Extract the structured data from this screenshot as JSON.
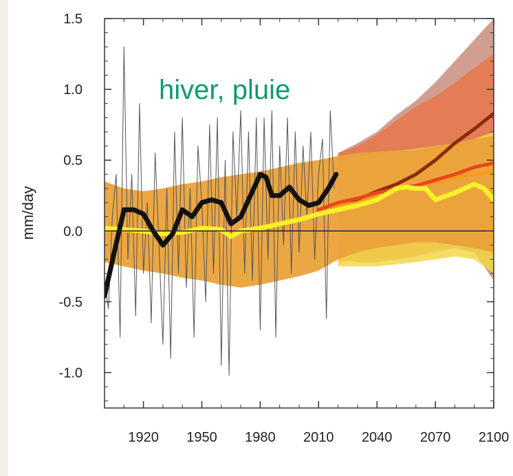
{
  "chart_data": {
    "type": "line",
    "title": "hiver, pluie",
    "ylabel": "mm/day",
    "xlabel": "",
    "xlim": [
      1900,
      2100
    ],
    "ylim": [
      -1.25,
      1.5
    ],
    "x_tick_labels": [
      "1920",
      "1950",
      "1980",
      "2010",
      "2040",
      "2070",
      "2100"
    ],
    "x_ticks": [
      1920,
      1950,
      1980,
      2010,
      2040,
      2070,
      2100
    ],
    "y_tick_labels": [
      "1.5",
      "1.0",
      "0.5",
      "0.0",
      "-0.5",
      "-1.0"
    ],
    "y_ticks": [
      1.5,
      1.0,
      0.5,
      0.0,
      -0.5,
      -1.0
    ],
    "zero_line": 0,
    "grid": false,
    "colors": {
      "title": "#0f9a6e",
      "envelope_orange": "#e9a23a",
      "envelope_red": "#e8774a",
      "envelope_brown": "#c98e7e",
      "envelope_yellow": "#f2d64a",
      "obs_annual": "#555555",
      "obs_smooth": "#111111",
      "proj_brown": "#8b2a0c",
      "proj_red": "#e8471c",
      "proj_orange": "#f59a1e",
      "proj_yellow": "#f7f02a"
    },
    "bands": [
      {
        "color": "envelope_brown",
        "x": [
          2020,
          2030,
          2040,
          2050,
          2060,
          2070,
          2080,
          2090,
          2100
        ],
        "upper": [
          0.55,
          0.62,
          0.7,
          0.82,
          0.92,
          1.05,
          1.2,
          1.35,
          1.5
        ],
        "lower": [
          -0.2,
          -0.22,
          -0.22,
          -0.2,
          -0.18,
          -0.15,
          -0.12,
          -0.15,
          -0.35
        ]
      },
      {
        "color": "envelope_red",
        "x": [
          2020,
          2030,
          2040,
          2050,
          2060,
          2070,
          2080,
          2090,
          2100
        ],
        "upper": [
          0.55,
          0.6,
          0.68,
          0.78,
          0.88,
          0.95,
          1.05,
          1.15,
          1.25
        ],
        "lower": [
          -0.22,
          -0.2,
          -0.2,
          -0.2,
          -0.18,
          -0.12,
          -0.12,
          -0.15,
          -0.18
        ]
      },
      {
        "color": "envelope_yellow",
        "x": [
          2020,
          2040,
          2060,
          2080,
          2090,
          2100
        ],
        "upper": [
          0.5,
          0.55,
          0.58,
          0.62,
          0.65,
          0.7
        ],
        "lower": [
          -0.25,
          -0.25,
          -0.22,
          -0.18,
          -0.2,
          -0.3
        ]
      },
      {
        "color": "envelope_orange",
        "x": [
          1900,
          1910,
          1920,
          1930,
          1940,
          1950,
          1960,
          1970,
          1980,
          1990,
          2000,
          2010,
          2020,
          2030,
          2040,
          2050,
          2060,
          2070,
          2080,
          2090,
          2100
        ],
        "upper": [
          0.35,
          0.3,
          0.28,
          0.3,
          0.33,
          0.35,
          0.38,
          0.4,
          0.42,
          0.45,
          0.48,
          0.5,
          0.53,
          0.55,
          0.56,
          0.57,
          0.57,
          0.6,
          0.62,
          0.65,
          0.67
        ],
        "lower": [
          -0.22,
          -0.25,
          -0.28,
          -0.3,
          -0.33,
          -0.35,
          -0.38,
          -0.4,
          -0.38,
          -0.35,
          -0.32,
          -0.28,
          -0.2,
          -0.15,
          -0.12,
          -0.1,
          -0.08,
          -0.08,
          -0.1,
          -0.12,
          -0.15
        ]
      }
    ],
    "series": [
      {
        "color": "obs_annual",
        "width": 1,
        "x": [
          1900,
          1902,
          1904,
          1906,
          1908,
          1910,
          1912,
          1914,
          1916,
          1918,
          1920,
          1922,
          1924,
          1926,
          1928,
          1930,
          1932,
          1934,
          1936,
          1938,
          1940,
          1942,
          1944,
          1946,
          1948,
          1950,
          1952,
          1954,
          1956,
          1958,
          1960,
          1962,
          1964,
          1966,
          1968,
          1970,
          1972,
          1974,
          1976,
          1978,
          1980,
          1982,
          1984,
          1986,
          1988,
          1990,
          1992,
          1994,
          1996,
          1998,
          2000,
          2002,
          2004,
          2006,
          2008,
          2010,
          2012,
          2014,
          2016,
          2018
        ],
        "y": [
          -0.35,
          -0.55,
          0.1,
          0.4,
          -0.75,
          1.3,
          -0.2,
          0.4,
          -0.6,
          0.9,
          -0.3,
          0.2,
          -0.65,
          0.55,
          -0.1,
          -0.8,
          0.3,
          -0.9,
          0.7,
          -0.3,
          0.8,
          -0.4,
          0.3,
          -0.75,
          0.6,
          0.2,
          -0.5,
          0.75,
          -0.3,
          0.8,
          -0.95,
          0.5,
          -1.02,
          0.7,
          0.1,
          0.85,
          -0.3,
          0.7,
          -0.35,
          0.8,
          -0.7,
          0.8,
          -0.2,
          0.85,
          -0.75,
          0.6,
          -0.1,
          0.8,
          -0.3,
          0.7,
          -0.15,
          0.6,
          0.1,
          0.7,
          -0.2,
          0.4,
          0.65,
          -0.62,
          0.85,
          0.3
        ]
      },
      {
        "color": "proj_brown",
        "width": 5,
        "x": [
          2010,
          2020,
          2030,
          2040,
          2050,
          2060,
          2070,
          2080,
          2090,
          2100
        ],
        "y": [
          0.15,
          0.18,
          0.22,
          0.28,
          0.33,
          0.4,
          0.5,
          0.62,
          0.72,
          0.83
        ]
      },
      {
        "color": "proj_orange",
        "width": 5,
        "x": [
          2010,
          2020,
          2030,
          2040,
          2050,
          2060,
          2070,
          2080,
          2090,
          2100
        ],
        "y": [
          0.15,
          0.18,
          0.2,
          0.25,
          0.3,
          0.3,
          0.35,
          0.38,
          0.4,
          0.42
        ]
      },
      {
        "color": "proj_red",
        "width": 5,
        "x": [
          2010,
          2020,
          2030,
          2040,
          2050,
          2060,
          2070,
          2080,
          2090,
          2100
        ],
        "y": [
          0.15,
          0.2,
          0.23,
          0.27,
          0.3,
          0.32,
          0.36,
          0.4,
          0.45,
          0.48
        ]
      },
      {
        "color": "proj_yellow",
        "width": 7,
        "x": [
          1900,
          1910,
          1920,
          1930,
          1940,
          1950,
          1960,
          1965,
          1970,
          1980,
          1990,
          2000,
          2010,
          2020,
          2030,
          2040,
          2050,
          2055,
          2060,
          2065,
          2070,
          2080,
          2090,
          2095,
          2100
        ],
        "y": [
          0.02,
          0.01,
          0.0,
          -0.02,
          -0.01,
          0.02,
          0.01,
          -0.04,
          0.0,
          0.02,
          0.05,
          0.08,
          0.12,
          0.15,
          0.18,
          0.22,
          0.3,
          0.31,
          0.3,
          0.3,
          0.22,
          0.27,
          0.33,
          0.3,
          0.22
        ]
      },
      {
        "color": "obs_smooth",
        "width": 7,
        "x": [
          1900,
          1905,
          1910,
          1915,
          1920,
          1925,
          1930,
          1935,
          1940,
          1945,
          1950,
          1955,
          1960,
          1965,
          1970,
          1975,
          1980,
          1983,
          1986,
          1990,
          1995,
          2000,
          2005,
          2010,
          2015,
          2019
        ],
        "y": [
          -0.46,
          -0.15,
          0.15,
          0.15,
          0.12,
          0.0,
          -0.1,
          -0.02,
          0.15,
          0.1,
          0.2,
          0.22,
          0.2,
          0.05,
          0.1,
          0.25,
          0.4,
          0.38,
          0.25,
          0.25,
          0.31,
          0.22,
          0.18,
          0.2,
          0.3,
          0.4
        ]
      }
    ]
  }
}
